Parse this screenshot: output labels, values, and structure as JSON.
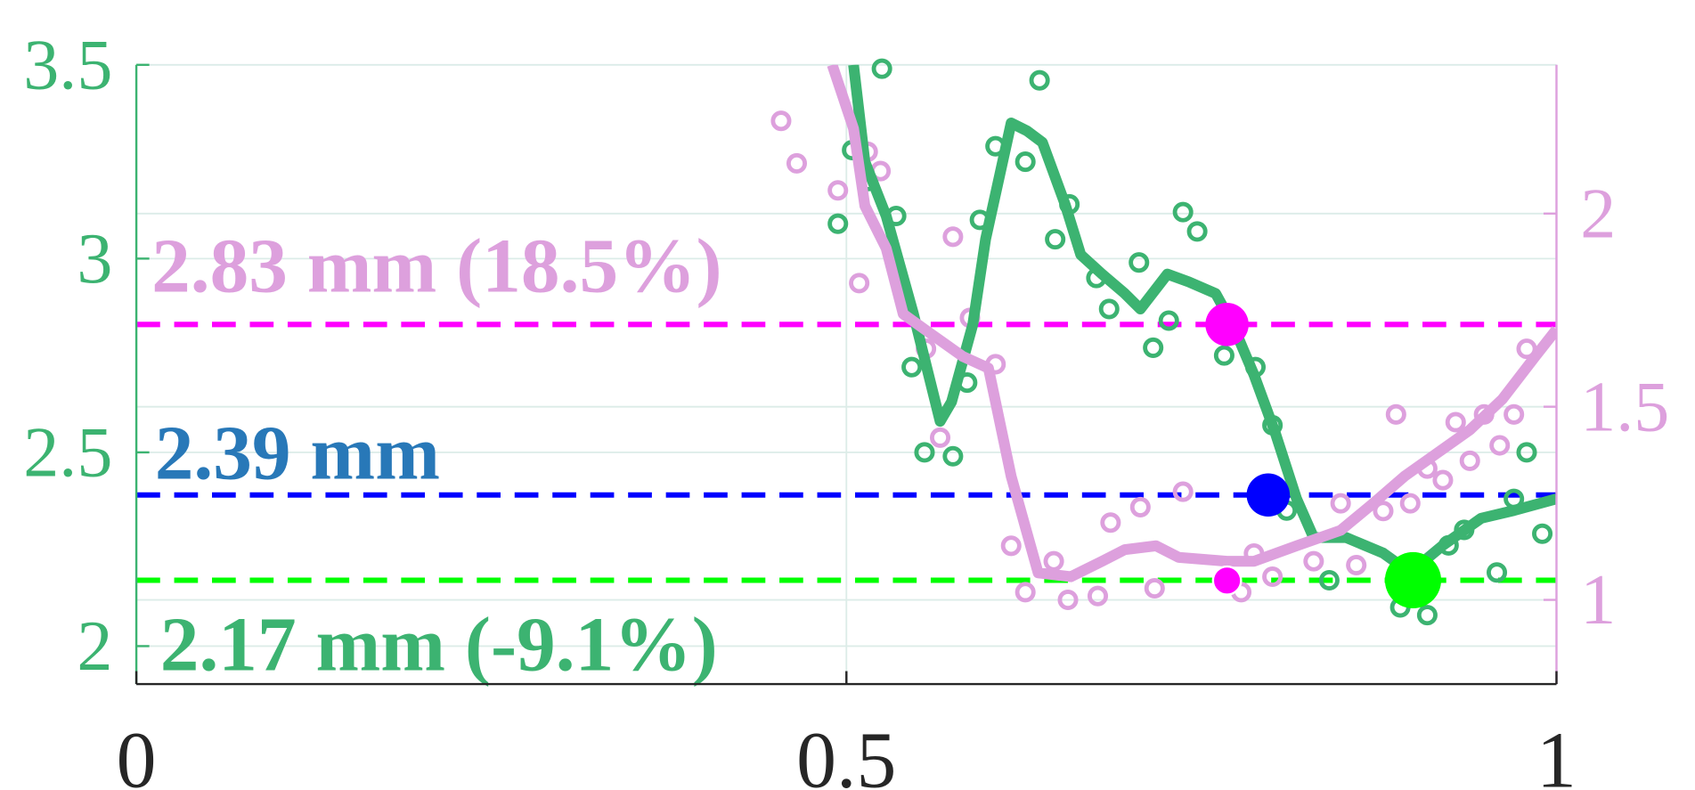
{
  "chart_data": {
    "type": "line",
    "xlim": [
      0,
      1
    ],
    "xticks": [
      0,
      0.5,
      1
    ],
    "ylim": [
      1.902,
      3.5
    ],
    "yticks": [
      2,
      2.5,
      3,
      3.5
    ],
    "y2lim": [
      0.782,
      2.385
    ],
    "y2ticks": [
      1,
      1.5,
      2
    ],
    "grid": true,
    "left_axis_color": "#3cb371",
    "right_axis_color": "#dda0dd",
    "series": [
      {
        "name": "green-trend",
        "color": "#3cb371",
        "style": "line",
        "x": [
          0.505,
          0.513,
          0.528,
          0.547,
          0.566,
          0.574,
          0.589,
          0.598,
          0.616,
          0.627,
          0.638,
          0.654,
          0.665,
          0.68,
          0.696,
          0.707,
          0.726,
          0.741,
          0.76,
          0.772,
          0.787,
          0.802,
          0.817,
          0.829,
          0.852,
          0.878,
          0.897,
          0.92,
          0.947,
          0.97,
          1.0
        ],
        "values": [
          3.5,
          3.25,
          3.11,
          2.86,
          2.58,
          2.63,
          2.83,
          3.05,
          3.35,
          3.33,
          3.3,
          3.14,
          3.01,
          2.96,
          2.91,
          2.87,
          2.96,
          2.94,
          2.91,
          2.83,
          2.7,
          2.55,
          2.38,
          2.28,
          2.28,
          2.24,
          2.19,
          2.26,
          2.33,
          2.35,
          2.38
        ]
      },
      {
        "name": "green-samples",
        "color": "#3cb371",
        "style": "scatter",
        "x": [
          0.525,
          0.504,
          0.515,
          0.535,
          0.494,
          0.546,
          0.555,
          0.575,
          0.585,
          0.594,
          0.605,
          0.626,
          0.636,
          0.647,
          0.657,
          0.676,
          0.685,
          0.706,
          0.716,
          0.727,
          0.737,
          0.747,
          0.766,
          0.788,
          0.8,
          0.81,
          0.84,
          0.89,
          0.909,
          0.924,
          0.935,
          0.958,
          0.97,
          0.979,
          0.99
        ],
        "values": [
          3.49,
          3.28,
          3.2,
          3.11,
          3.09,
          2.72,
          2.5,
          2.49,
          2.68,
          3.1,
          3.29,
          3.25,
          3.46,
          3.05,
          3.14,
          2.95,
          2.87,
          2.99,
          2.77,
          2.84,
          3.12,
          3.07,
          2.75,
          2.72,
          2.57,
          2.35,
          2.17,
          2.1,
          2.08,
          2.26,
          2.3,
          2.19,
          2.38,
          2.5,
          2.29
        ]
      },
      {
        "name": "pink-trend",
        "color": "#dda0dd",
        "style": "line",
        "axis": "y2",
        "x": [
          0.49,
          0.505,
          0.513,
          0.528,
          0.54,
          0.559,
          0.582,
          0.6,
          0.616,
          0.635,
          0.658,
          0.68,
          0.696,
          0.718,
          0.734,
          0.768,
          0.787,
          0.817,
          0.848,
          0.871,
          0.893,
          0.916,
          0.939,
          0.962,
          0.985,
          1.0
        ],
        "values": [
          2.385,
          2.22,
          2.02,
          1.91,
          1.74,
          1.69,
          1.63,
          1.6,
          1.32,
          1.07,
          1.06,
          1.1,
          1.13,
          1.14,
          1.11,
          1.1,
          1.1,
          1.14,
          1.18,
          1.25,
          1.32,
          1.38,
          1.44,
          1.52,
          1.63,
          1.7
        ]
      },
      {
        "name": "pink-samples",
        "color": "#dda0dd",
        "style": "scatter",
        "axis": "y2",
        "x": [
          0.454,
          0.465,
          0.494,
          0.515,
          0.524,
          0.509,
          0.575,
          0.587,
          0.556,
          0.605,
          0.566,
          0.616,
          0.626,
          0.646,
          0.656,
          0.677,
          0.686,
          0.707,
          0.717,
          0.737,
          0.778,
          0.787,
          0.8,
          0.829,
          0.848,
          0.859,
          0.878,
          0.887,
          0.897,
          0.909,
          0.92,
          0.929,
          0.939,
          0.949,
          0.96,
          0.97,
          0.979
        ],
        "values": [
          2.24,
          2.13,
          2.06,
          2.16,
          2.11,
          1.82,
          1.94,
          1.73,
          1.65,
          1.61,
          1.42,
          1.14,
          1.02,
          1.1,
          1.0,
          1.01,
          1.2,
          1.24,
          1.03,
          1.28,
          1.02,
          1.12,
          1.06,
          1.1,
          1.25,
          1.09,
          1.23,
          1.48,
          1.25,
          1.34,
          1.31,
          1.46,
          1.36,
          1.48,
          1.4,
          1.48,
          1.65
        ]
      }
    ],
    "hlines": [
      {
        "y": 2.83,
        "color": "#ff00ff"
      },
      {
        "y": 2.39,
        "color": "#0000ff"
      },
      {
        "y": 2.17,
        "color": "#00ff00"
      }
    ],
    "markers": [
      {
        "x": 0.768,
        "y": 2.83,
        "color": "#ff00ff",
        "size": 20
      },
      {
        "x": 0.797,
        "y": 2.39,
        "color": "#0000ff",
        "size": 20
      },
      {
        "x": 0.899,
        "y": 2.17,
        "color": "#00ff00",
        "size": 26
      },
      {
        "x": 0.768,
        "y": 1.05,
        "color": "#ff00ff",
        "size": 13,
        "axis": "y2"
      }
    ],
    "annotations": [
      {
        "text": "2.83 mm (18.5%)",
        "color": "#dda0dd"
      },
      {
        "text": "2.39 mm",
        "color": "#2878b8"
      },
      {
        "text": "2.17 mm (-9.1%)",
        "color": "#3cb371"
      }
    ]
  }
}
